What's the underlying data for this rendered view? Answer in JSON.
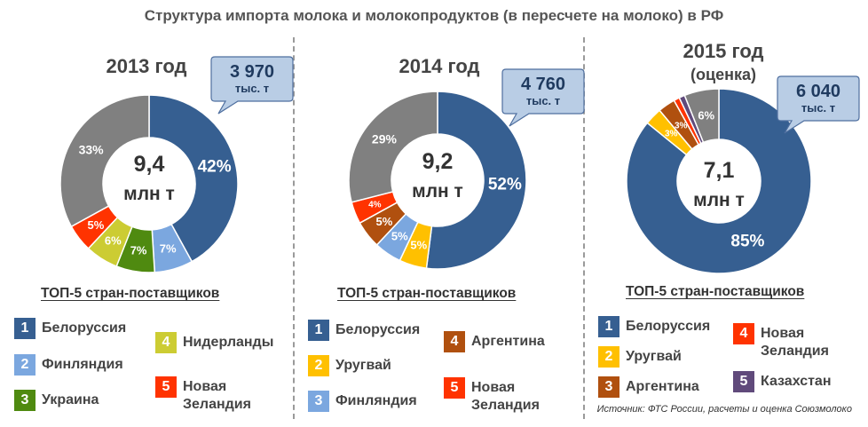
{
  "title": "Структура импорта молока и молокопродуктов (в пересчете на молоко) в РФ",
  "source": "Источник: ФТС России, расчеты и оценка Союзмолоко",
  "colors": {
    "rank1": "#365f91",
    "rank2_fi": "#7ba7df",
    "rank2_uy": "#ffc000",
    "rank3_ua": "#4f8a10",
    "rank3_ar": "#b0500f",
    "nl": "#cccc33",
    "nz": "#ff3300",
    "kz": "#604a7b",
    "other": "#808080",
    "callout_fill": "#b9cde5",
    "callout_border": "#4f6f9f"
  },
  "panels": [
    {
      "year": "2013 год",
      "total_value": "9,4",
      "total_unit": "млн т",
      "callout_value": "3 970",
      "callout_unit": "тыс. т",
      "top5_title": "ТОП-5 стран-поставщиков",
      "legend": [
        {
          "num": "1",
          "name": "Белоруссия",
          "color": "#365f91"
        },
        {
          "num": "2",
          "name": "Финляндия",
          "color": "#7ba7df"
        },
        {
          "num": "3",
          "name": "Украина",
          "color": "#4f8a10"
        },
        {
          "num": "4",
          "name": "Нидерланды",
          "color": "#cccc33"
        },
        {
          "num": "5",
          "name": "Новая Зеландия",
          "color": "#ff3300"
        }
      ]
    },
    {
      "year": "2014 год",
      "total_value": "9,2",
      "total_unit": "млн т",
      "callout_value": "4 760",
      "callout_unit": "тыс. т",
      "top5_title": "ТОП-5 стран-поставщиков",
      "legend": [
        {
          "num": "1",
          "name": "Белоруссия",
          "color": "#365f91"
        },
        {
          "num": "2",
          "name": "Уругвай",
          "color": "#ffc000"
        },
        {
          "num": "3",
          "name": "Финляндия",
          "color": "#7ba7df"
        },
        {
          "num": "4",
          "name": "Аргентина",
          "color": "#b0500f"
        },
        {
          "num": "5",
          "name": "Новая Зеландия",
          "color": "#ff3300"
        }
      ]
    },
    {
      "year": "2015 год",
      "year_note": "(оценка)",
      "total_value": "7,1",
      "total_unit": "млн т",
      "callout_value": "6 040",
      "callout_unit": "тыс. т",
      "top5_title": "ТОП-5 стран-поставщиков",
      "legend": [
        {
          "num": "1",
          "name": "Белоруссия",
          "color": "#365f91"
        },
        {
          "num": "2",
          "name": "Уругвай",
          "color": "#ffc000"
        },
        {
          "num": "3",
          "name": "Аргентина",
          "color": "#b0500f"
        },
        {
          "num": "4",
          "name": "Новая Зеландия",
          "color": "#ff3300"
        },
        {
          "num": "5",
          "name": "Казахстан",
          "color": "#604a7b"
        }
      ]
    }
  ],
  "chart_data": [
    {
      "type": "pie",
      "donut": true,
      "title": "2013 год",
      "slices": [
        {
          "value": 42,
          "label": "42%",
          "color": "#365f91"
        },
        {
          "value": 7,
          "label": "7%",
          "color": "#7ba7df"
        },
        {
          "value": 7,
          "label": "7%",
          "color": "#4f8a10"
        },
        {
          "value": 6,
          "label": "6%",
          "color": "#cccc33"
        },
        {
          "value": 5,
          "label": "5%",
          "color": "#ff3300"
        },
        {
          "value": 33,
          "label": "33%",
          "color": "#808080"
        }
      ]
    },
    {
      "type": "pie",
      "donut": true,
      "title": "2014 год",
      "slices": [
        {
          "value": 52,
          "label": "52%",
          "color": "#365f91"
        },
        {
          "value": 5,
          "label": "5%",
          "color": "#ffc000"
        },
        {
          "value": 5,
          "label": "5%",
          "color": "#7ba7df"
        },
        {
          "value": 5,
          "label": "5%",
          "color": "#b0500f"
        },
        {
          "value": 4,
          "label": "4%",
          "color": "#ff3300"
        },
        {
          "value": 29,
          "label": "29%",
          "color": "#808080"
        }
      ]
    },
    {
      "type": "pie",
      "donut": true,
      "title": "2015 год (оценка)",
      "slices": [
        {
          "value": 85,
          "label": "85%",
          "color": "#365f91"
        },
        {
          "value": 3,
          "label": "3%",
          "color": "#ffc000"
        },
        {
          "value": 3,
          "label": "3%",
          "color": "#b0500f"
        },
        {
          "value": 1,
          "label": "",
          "color": "#ff3300"
        },
        {
          "value": 1,
          "label": "",
          "color": "#604a7b"
        },
        {
          "value": 6,
          "label": "6%",
          "color": "#808080"
        }
      ]
    }
  ]
}
